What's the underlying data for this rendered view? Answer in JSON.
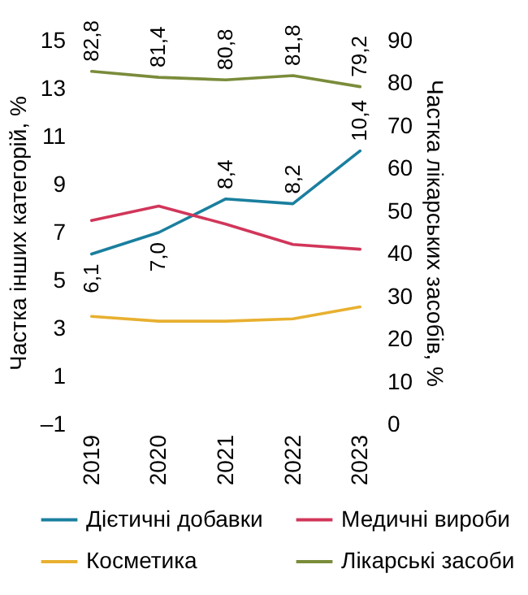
{
  "chart_data": {
    "type": "line",
    "categories": [
      "2019",
      "2020",
      "2021",
      "2022",
      "2023"
    ],
    "ylabel": "Частка інших категорій, %",
    "y2label": "Частка лікарських засобів, %",
    "ylim": [
      -1,
      15
    ],
    "yticks": [
      {
        "value": -1,
        "label": "–1"
      },
      1,
      3,
      5,
      7,
      9,
      11,
      13,
      15
    ],
    "y2lim": [
      0,
      90
    ],
    "y2ticks": [
      0,
      10,
      20,
      30,
      40,
      50,
      60,
      70,
      80,
      90
    ],
    "legend": "bottom",
    "series": [
      {
        "name": "Дієтичні добавки",
        "color": "#1a7f9e",
        "values": [
          6.1,
          7.0,
          8.4,
          8.2,
          10.4
        ],
        "value_labels": [
          "6,1",
          "7,0",
          "8,4",
          "8,2",
          "10,4"
        ]
      },
      {
        "name": "Медичні вироби",
        "color": "#d1365a",
        "values": [
          7.5,
          8.1,
          7.35,
          6.5,
          6.3
        ]
      },
      {
        "name": "Косметика",
        "color": "#e8b030",
        "values": [
          3.5,
          3.3,
          3.3,
          3.4,
          3.9
        ]
      },
      {
        "name": "Лікарські засоби",
        "color": "#7a8c3a",
        "axis": "y2",
        "values": [
          82.8,
          81.4,
          80.8,
          81.8,
          79.2
        ],
        "value_labels": [
          "82,8",
          "81,4",
          "80,8",
          "81,8",
          "79,2"
        ]
      }
    ]
  }
}
